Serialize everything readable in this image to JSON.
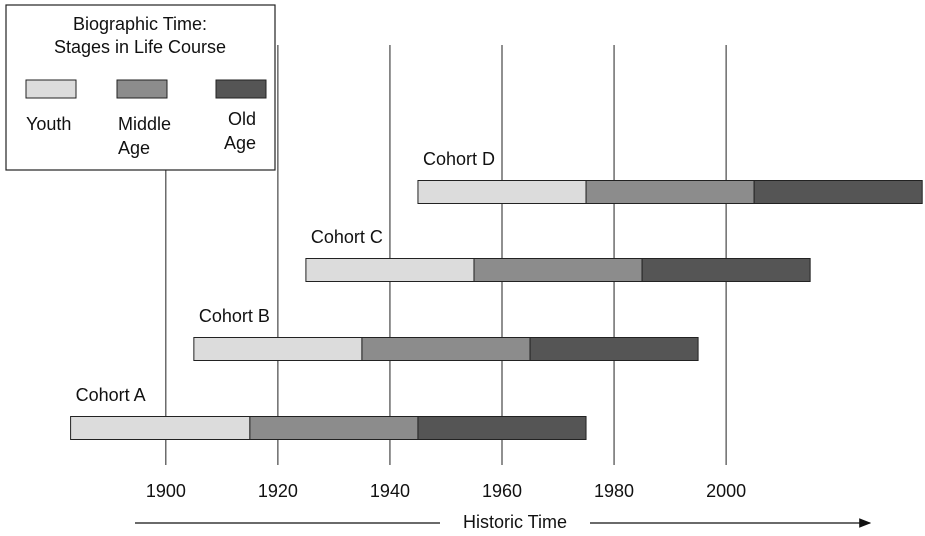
{
  "chart_data": {
    "type": "timeline",
    "categories": [
      "Cohort A",
      "Cohort B",
      "Cohort C",
      "Cohort D"
    ],
    "start": [
      1883,
      1905,
      1925,
      1945
    ],
    "series": [
      {
        "name": "Youth",
        "color": "#dcdcdc",
        "values": [
          32,
          30,
          30,
          30
        ]
      },
      {
        "name": "Middle Age",
        "color": "#8c8c8c",
        "values": [
          30,
          30,
          30,
          30
        ]
      },
      {
        "name": "Old Age",
        "color": "#555555",
        "values": [
          30,
          30,
          30,
          30
        ]
      }
    ],
    "legend_title": [
      "Biographic Time:",
      "Stages in Life Course"
    ],
    "xlabel": "Historic Time",
    "xlim": [
      1870.4,
      2035.5
    ],
    "xticks": [
      1900,
      1920,
      1940,
      1960,
      1980,
      2000
    ],
    "grid": true,
    "legend": "upper left"
  }
}
